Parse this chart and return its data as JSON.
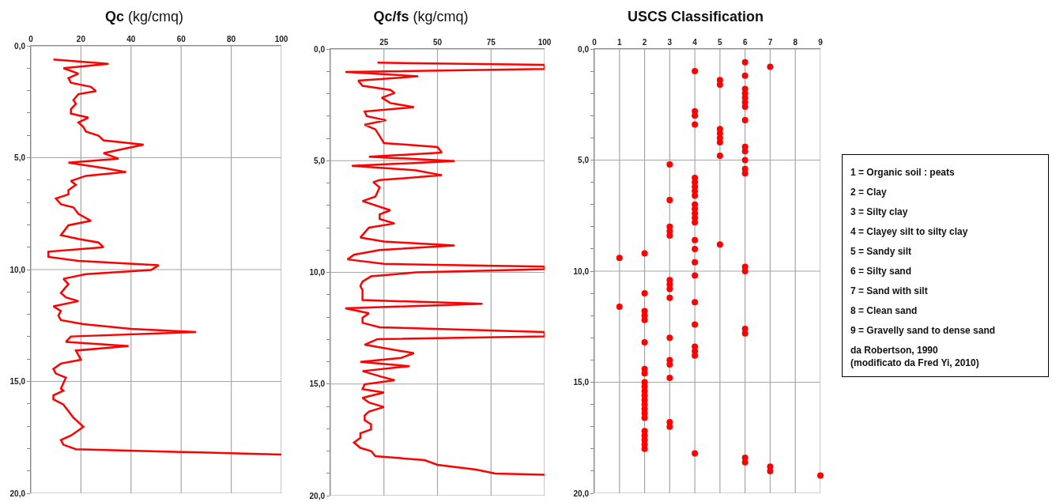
{
  "chart_data": [
    {
      "type": "line",
      "title": "Qc (kg/cmq)",
      "xlim": [
        0,
        100
      ],
      "xticks": [
        0,
        20,
        40,
        60,
        80,
        100
      ],
      "ylim": [
        20,
        0
      ],
      "yticks": [
        {
          "value": 0,
          "label": "0,0"
        },
        {
          "value": 1,
          "label": null
        },
        {
          "value": 2,
          "label": null
        },
        {
          "value": 3,
          "label": null
        },
        {
          "value": 4,
          "label": null
        },
        {
          "value": 5,
          "label": "5,0"
        },
        {
          "value": 6,
          "label": null
        },
        {
          "value": 7,
          "label": null
        },
        {
          "value": 8,
          "label": null
        },
        {
          "value": 9,
          "label": null
        },
        {
          "value": 10,
          "label": "10,0"
        },
        {
          "value": 11,
          "label": null
        },
        {
          "value": 12,
          "label": null
        },
        {
          "value": 13,
          "label": null
        },
        {
          "value": 14,
          "label": null
        },
        {
          "value": 15,
          "label": "15,0"
        },
        {
          "value": 16,
          "label": null
        },
        {
          "value": 17,
          "label": null
        },
        {
          "value": 18,
          "label": null
        },
        {
          "value": 19,
          "label": null
        },
        {
          "value": 20,
          "label": "20,0"
        }
      ],
      "grid": true,
      "series": [
        {
          "color": "#ff0000",
          "x": [
            9,
            31,
            13,
            19,
            15,
            16,
            24,
            26,
            19,
            17,
            18,
            16,
            16,
            23,
            19,
            21,
            22,
            27,
            29,
            45,
            29,
            35,
            15,
            30,
            38,
            22,
            16,
            18,
            15,
            15,
            10,
            12,
            17,
            19,
            24,
            15,
            12,
            19,
            27,
            29,
            7,
            7,
            19,
            51,
            48,
            22,
            13,
            15,
            12,
            14,
            19,
            9,
            12,
            11,
            12,
            21,
            40,
            66,
            16,
            14,
            39,
            18,
            20,
            12,
            9,
            10,
            14,
            12,
            13,
            9,
            9,
            13,
            17,
            21,
            16,
            12,
            13,
            18,
            60,
            100
          ],
          "values": [
            0.61,
            0.8,
            1.0,
            1.24,
            1.44,
            1.65,
            1.83,
            2.02,
            2.16,
            2.42,
            2.59,
            2.83,
            3.03,
            3.21,
            3.42,
            3.63,
            3.83,
            4.01,
            4.22,
            4.42,
            4.8,
            5.04,
            5.22,
            5.48,
            5.64,
            5.81,
            6.04,
            6.21,
            6.45,
            6.64,
            6.82,
            7.08,
            7.22,
            7.51,
            7.82,
            8.02,
            8.46,
            8.63,
            8.79,
            9.0,
            9.2,
            9.43,
            9.61,
            9.81,
            10.02,
            10.2,
            10.41,
            10.65,
            11.05,
            11.24,
            11.41,
            11.64,
            11.85,
            12.06,
            12.26,
            12.44,
            12.65,
            12.79,
            12.99,
            13.23,
            13.42,
            13.62,
            14.03,
            14.2,
            14.44,
            14.65,
            14.83,
            15.32,
            15.41,
            15.62,
            15.8,
            16.03,
            16.62,
            17.03,
            17.42,
            17.62,
            17.83,
            18.03,
            18.15,
            18.27
          ]
        }
      ]
    },
    {
      "type": "line",
      "title": "Qc/fs (kg/cmq)",
      "xlim": [
        0,
        100
      ],
      "xticks": [
        {
          "value": 0,
          "label": null
        },
        25,
        50,
        75,
        100
      ],
      "ylim": [
        20,
        0
      ],
      "yticks": [
        {
          "value": 0,
          "label": "0,0"
        },
        {
          "value": 1,
          "label": null
        },
        {
          "value": 2,
          "label": null
        },
        {
          "value": 3,
          "label": null
        },
        {
          "value": 4,
          "label": null
        },
        {
          "value": 5,
          "label": "5,0"
        },
        {
          "value": 6,
          "label": null
        },
        {
          "value": 7,
          "label": null
        },
        {
          "value": 8,
          "label": null
        },
        {
          "value": 9,
          "label": null
        },
        {
          "value": 10,
          "label": "10,0"
        },
        {
          "value": 11,
          "label": null
        },
        {
          "value": 12,
          "label": null
        },
        {
          "value": 13,
          "label": null
        },
        {
          "value": 14,
          "label": null
        },
        {
          "value": 15,
          "label": "15,0"
        },
        {
          "value": 16,
          "label": null
        },
        {
          "value": 17,
          "label": null
        },
        {
          "value": 18,
          "label": null
        },
        {
          "value": 19,
          "label": null
        },
        {
          "value": 20,
          "label": "20,0"
        }
      ],
      "grid": true,
      "series": [
        {
          "color": "#ff0000",
          "x": [
            22,
            100,
            100,
            7,
            41,
            13,
            15,
            28,
            30,
            24,
            28,
            39,
            16,
            17,
            26,
            16,
            21,
            23,
            25,
            50,
            52,
            18,
            58,
            10,
            40,
            52,
            23,
            20,
            23,
            21,
            15,
            28,
            23,
            23,
            30,
            18,
            14,
            25,
            58,
            23,
            11,
            8,
            25,
            100,
            100,
            40,
            19,
            15,
            14,
            15,
            15,
            71,
            7,
            18,
            15,
            15,
            23,
            100,
            100,
            22,
            16,
            39,
            33,
            14,
            37,
            15,
            23,
            30,
            16,
            15,
            25,
            15,
            18,
            25,
            18,
            16,
            16,
            19,
            19,
            14,
            14,
            11,
            14,
            19,
            21,
            44,
            50,
            68,
            77,
            100
          ],
          "values": [
            0.61,
            0.71,
            0.89,
            1.03,
            1.22,
            1.42,
            1.65,
            1.83,
            1.97,
            2.18,
            2.42,
            2.6,
            2.8,
            3.01,
            3.19,
            3.39,
            3.6,
            3.9,
            4.21,
            4.39,
            4.64,
            4.82,
            5.02,
            5.23,
            5.43,
            5.65,
            5.87,
            5.96,
            6.2,
            6.61,
            6.81,
            7.22,
            7.4,
            7.61,
            7.81,
            8.0,
            8.44,
            8.62,
            8.8,
            9.0,
            9.21,
            9.42,
            9.62,
            9.74,
            9.86,
            10.0,
            10.18,
            10.41,
            10.61,
            10.79,
            11.24,
            11.41,
            11.61,
            11.83,
            12.03,
            12.26,
            12.46,
            12.67,
            12.87,
            12.99,
            13.24,
            13.62,
            13.83,
            14.01,
            14.2,
            14.42,
            14.65,
            14.83,
            15.01,
            15.23,
            15.38,
            15.62,
            15.83,
            16.03,
            16.23,
            16.41,
            16.62,
            16.8,
            17.03,
            17.21,
            17.41,
            17.62,
            17.86,
            18.0,
            18.23,
            18.41,
            18.62,
            18.83,
            19.01,
            19.06
          ]
        }
      ]
    },
    {
      "type": "scatter",
      "title": "USCS Classification",
      "xlim": [
        0,
        9
      ],
      "xticks": [
        0,
        1,
        2,
        3,
        4,
        5,
        6,
        7,
        8,
        9
      ],
      "ylim": [
        20,
        0
      ],
      "yticks": [
        {
          "value": 0,
          "label": "0,0"
        },
        {
          "value": 1,
          "label": null
        },
        {
          "value": 2,
          "label": null
        },
        {
          "value": 3,
          "label": null
        },
        {
          "value": 4,
          "label": null
        },
        {
          "value": 5,
          "label": "5,0"
        },
        {
          "value": 6,
          "label": null
        },
        {
          "value": 7,
          "label": null
        },
        {
          "value": 8,
          "label": null
        },
        {
          "value": 9,
          "label": null
        },
        {
          "value": 10,
          "label": "10,0"
        },
        {
          "value": 11,
          "label": null
        },
        {
          "value": 12,
          "label": null
        },
        {
          "value": 13,
          "label": null
        },
        {
          "value": 14,
          "label": null
        },
        {
          "value": 15,
          "label": "15,0"
        },
        {
          "value": 16,
          "label": null
        },
        {
          "value": 17,
          "label": null
        },
        {
          "value": 18,
          "label": null
        },
        {
          "value": 19,
          "label": null
        },
        {
          "value": 20,
          "label": "20,0"
        }
      ],
      "grid": true,
      "marker": "circle",
      "annotations": [
        "1 = Organic soil : peats",
        "2 = Clay",
        "3 = Silty clay",
        "4 = Clayey silt to silty clay",
        "5 = Sandy silt",
        "6 = Silty sand",
        "7 = Sand with silt",
        "8 = Clean sand",
        "9 = Gravelly sand to dense sand",
        "da Robertson, 1990",
        "(modificato da Fred Yi, 2010)"
      ],
      "series": [
        {
          "color": "#ff0000",
          "x": [
            7,
            7,
            7,
            6,
            6,
            6,
            6,
            6,
            6,
            6,
            6,
            6,
            6,
            6,
            6,
            6,
            6,
            6,
            6,
            6,
            6,
            6,
            5,
            5,
            5,
            5,
            5,
            5,
            5,
            5,
            4,
            4,
            4,
            4,
            4,
            4,
            4,
            4,
            4,
            4,
            4,
            4,
            4,
            4,
            4,
            4,
            4,
            4,
            4,
            4,
            4,
            4,
            4,
            4,
            3,
            3,
            3,
            3,
            3,
            3,
            3,
            3,
            3,
            3,
            3,
            3,
            3,
            3,
            3,
            2,
            2,
            2,
            2,
            2,
            2,
            2,
            2,
            2,
            2,
            2,
            2,
            2,
            2,
            2,
            2,
            2,
            2,
            2,
            2,
            2,
            2,
            1,
            1,
            9
          ],
          "values": [
            0.8,
            18.8,
            19.0,
            0.6,
            1.2,
            1.8,
            2.0,
            2.2,
            2.4,
            2.6,
            3.2,
            4.4,
            4.6,
            5.0,
            5.4,
            5.6,
            9.8,
            10.0,
            12.6,
            12.8,
            18.4,
            18.6,
            1.4,
            1.6,
            3.6,
            3.8,
            4.0,
            4.2,
            4.8,
            8.8,
            1.0,
            2.8,
            3.0,
            3.4,
            5.8,
            6.0,
            6.2,
            6.4,
            6.6,
            7.0,
            7.2,
            7.4,
            7.6,
            7.8,
            8.6,
            9.0,
            9.6,
            10.2,
            11.4,
            12.4,
            13.4,
            13.6,
            13.8,
            18.2,
            5.2,
            6.8,
            8.0,
            8.2,
            8.4,
            10.4,
            10.6,
            10.8,
            11.2,
            13.0,
            14.0,
            14.2,
            14.8,
            16.8,
            17.0,
            9.2,
            11.0,
            11.8,
            12.0,
            12.2,
            13.2,
            14.4,
            14.6,
            15.0,
            15.2,
            15.4,
            15.6,
            15.8,
            16.0,
            16.2,
            16.4,
            16.6,
            17.2,
            17.4,
            17.6,
            17.8,
            18.0,
            9.4,
            11.6,
            19.2
          ]
        }
      ]
    }
  ]
}
